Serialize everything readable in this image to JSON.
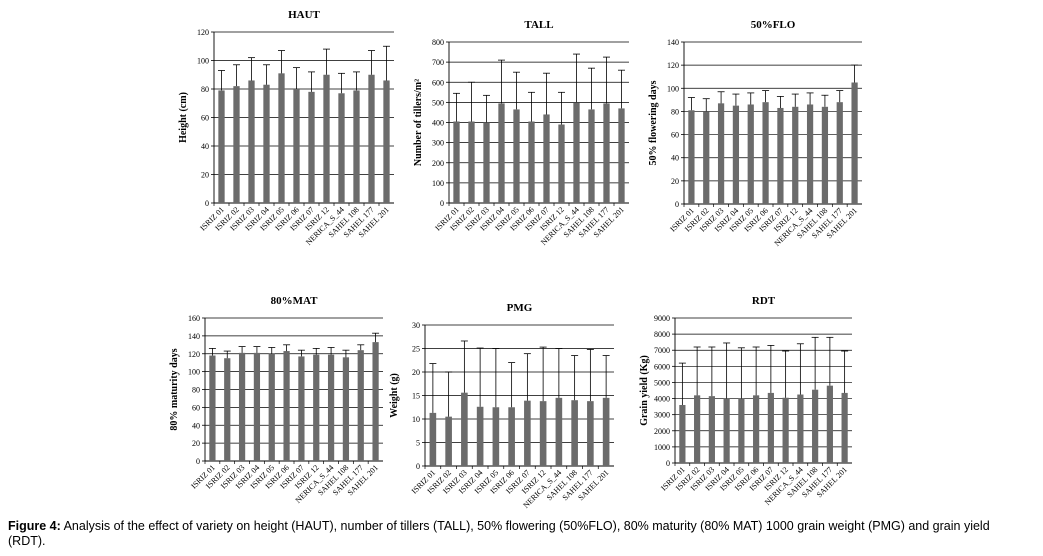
{
  "figure": {
    "caption_label": "Figure 4:",
    "caption_text": " Analysis of the effect of variety on height (HAUT), number of tillers (TALL), 50% flowering (50%FLO), 80% maturity (80% MAT) 1000 grain weight (PMG) and grain yield (RDT)."
  },
  "colors": {
    "bar": "#6b6b6b",
    "grid": "#000000",
    "axis": "#000000"
  },
  "chart_data": [
    {
      "type": "bar",
      "title": "HAUT",
      "ylabel": "Height (cm)",
      "xlabel": "",
      "ylim": [
        0,
        120
      ],
      "yticks": [
        0,
        20,
        40,
        60,
        80,
        100,
        120
      ],
      "grid": true,
      "categories": [
        "ISRIZ 01",
        "ISRIZ 02",
        "ISRIZ 03",
        "ISRIZ 04",
        "ISRIZ 05",
        "ISRIZ 06",
        "ISRIZ 07",
        "ISRIZ 12",
        "NERICA_S_44",
        "SAHEL 108",
        "SAHEL 177",
        "SAHEL 201"
      ],
      "values": [
        79,
        82,
        86,
        83,
        91,
        80,
        78,
        90,
        77,
        79,
        90,
        86
      ],
      "error": [
        14,
        15,
        16,
        14,
        16,
        15,
        14,
        18,
        14,
        13,
        17,
        24
      ]
    },
    {
      "type": "bar",
      "title": "TALL",
      "ylabel": "Number of tillers/m²",
      "xlabel": "",
      "ylim": [
        0,
        800
      ],
      "yticks": [
        0,
        100,
        200,
        300,
        400,
        500,
        600,
        700,
        800
      ],
      "grid": true,
      "categories": [
        "ISRIZ 01",
        "ISRIZ 02",
        "ISRIZ 03",
        "ISRIZ 04",
        "ISRIZ 05",
        "ISRIZ 06",
        "ISRIZ 07",
        "ISRIZ 12",
        "NERICA_S_44",
        "SAHEL 108",
        "SAHEL 177",
        "SAHEL 201"
      ],
      "values": [
        405,
        405,
        400,
        495,
        465,
        405,
        440,
        390,
        500,
        465,
        495,
        470
      ],
      "error": [
        140,
        195,
        135,
        215,
        185,
        145,
        205,
        160,
        240,
        205,
        230,
        190
      ]
    },
    {
      "type": "bar",
      "title": "50%FLO",
      "ylabel": "50% flowering days",
      "xlabel": "",
      "ylim": [
        0,
        140
      ],
      "yticks": [
        0,
        20,
        40,
        60,
        80,
        100,
        120,
        140
      ],
      "grid": true,
      "categories": [
        "ISRIZ 01",
        "ISRIZ 02",
        "ISRIZ 03",
        "ISRIZ 04",
        "ISRIZ 05",
        "ISRIZ 06",
        "ISRIZ 07",
        "ISRIZ 12",
        "NERICA_S_44",
        "SAHEL 108",
        "SAHEL 177",
        "SAHEL 201"
      ],
      "values": [
        81,
        80,
        87,
        85,
        86,
        88,
        83,
        84,
        86,
        84,
        88,
        105
      ],
      "error": [
        11,
        11,
        10,
        10,
        10,
        10,
        10,
        11,
        10,
        10,
        10,
        15
      ]
    },
    {
      "type": "bar",
      "title": "80%MAT",
      "ylabel": "80% maturity days",
      "xlabel": "",
      "ylim": [
        0,
        160
      ],
      "yticks": [
        0,
        20,
        40,
        60,
        80,
        100,
        120,
        140,
        160
      ],
      "grid": true,
      "categories": [
        "ISRIZ 01",
        "ISRIZ 02",
        "ISRIZ 03",
        "ISRIZ 04",
        "ISRIZ 05",
        "ISRIZ 06",
        "ISRIZ 07",
        "ISRIZ 12",
        "NERICA_S_44",
        "SAHEL 108",
        "SAHEL 177",
        "SAHEL 201"
      ],
      "values": [
        118,
        115,
        121,
        121,
        120,
        123,
        117,
        119,
        119,
        116,
        124,
        133
      ],
      "error": [
        8,
        8,
        7,
        7,
        7,
        7,
        7,
        7,
        8,
        8,
        6,
        10
      ]
    },
    {
      "type": "bar",
      "title": "PMG",
      "ylabel": "Weight (g)",
      "xlabel": "",
      "ylim": [
        0,
        30
      ],
      "yticks": [
        0,
        5,
        10,
        15,
        20,
        25,
        30
      ],
      "grid": true,
      "categories": [
        "ISRIZ 01",
        "ISRIZ 02",
        "ISRIZ 03",
        "ISRIZ 04",
        "ISRIZ 05",
        "ISRIZ 06",
        "ISRIZ 07",
        "ISRIZ 12",
        "NERICA_S_44",
        "SAHEL 108",
        "SAHEL 177",
        "SAHEL 201"
      ],
      "values": [
        11.3,
        10.5,
        15.6,
        12.6,
        12.5,
        12.5,
        13.9,
        13.8,
        14.5,
        14.0,
        13.8,
        14.5
      ],
      "error": [
        10.5,
        9.5,
        11,
        12.5,
        12.5,
        9.5,
        10,
        11.5,
        10.5,
        9.5,
        11,
        9
      ]
    },
    {
      "type": "bar",
      "title": "RDT",
      "ylabel": "Grain yield (Kg)",
      "xlabel": "",
      "ylim": [
        0,
        9000
      ],
      "yticks": [
        0,
        1000,
        2000,
        3000,
        4000,
        5000,
        6000,
        7000,
        8000,
        9000
      ],
      "grid": true,
      "categories": [
        "ISRIZ 01",
        "ISRIZ 02",
        "ISRIZ 03",
        "ISRIZ 04",
        "ISRIZ 05",
        "ISRIZ 06",
        "ISRIZ 07",
        "ISRIZ 12",
        "NERICA_S_44",
        "SAHEL 108",
        "SAHEL 177",
        "SAHEL 201"
      ],
      "values": [
        3600,
        4200,
        4150,
        4000,
        4000,
        4200,
        4350,
        4050,
        4250,
        4550,
        4800,
        4350
      ],
      "error": [
        2600,
        3000,
        3050,
        3450,
        3150,
        3000,
        2950,
        2900,
        3150,
        3250,
        3000,
        2600
      ]
    }
  ]
}
